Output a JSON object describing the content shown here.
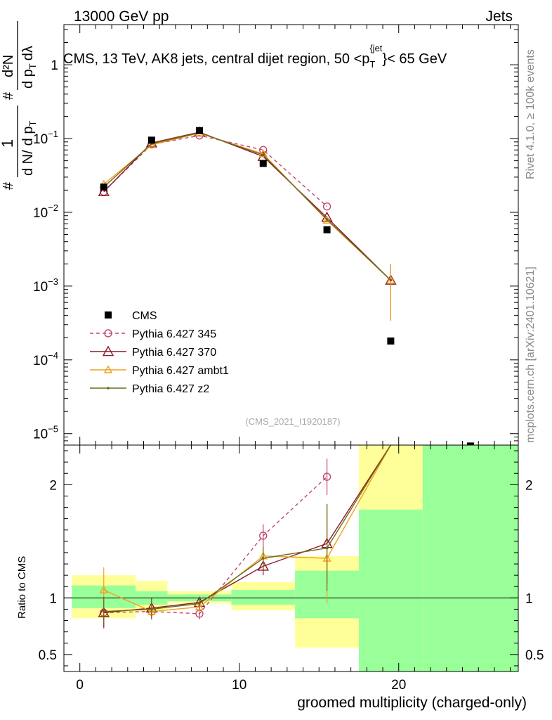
{
  "header": {
    "left": "13000 GeV pp",
    "right": "Jets"
  },
  "side": {
    "rivet": "Rivet 4.1.0, ≥ 100k events",
    "site": "mcplots.cern.ch [arXiv:2401.10621]"
  },
  "chart_data": {
    "type": "line",
    "title": "CMS, 13 TeV, AK8 jets, central dijet region, 50 < p_T^{jet} < 65 GeV",
    "title_parts": {
      "main": "CMS, 13 TeV, AK8 jets, central dijet region, 50 <p",
      "sub": "T",
      "sup": "{jet",
      "tail": "}< 65 GeV"
    },
    "analysis": "(CMS_2021_I1920187)",
    "xlabel": "groomed multiplicity (charged-only)",
    "ylabel_ratio": "Ratio to CMS",
    "ylabel_main": {
      "one": "1",
      "num_hash": "#",
      "den": "d N",
      "slash": "/",
      "dp": "d p",
      "T": "T",
      "hash": "#",
      "d2N": "d²N",
      "dpdl": "d p",
      "T2": "T",
      "dl": "dλ"
    },
    "xlim": [
      -1,
      27.5
    ],
    "ylim_main": [
      7e-06,
      3.5
    ],
    "ylim_ratio": [
      0.35,
      2.35
    ],
    "x_ticks": [
      0,
      10,
      20
    ],
    "x_tick_labels": [
      "0",
      "10",
      "20"
    ],
    "y_ticks_main": [
      1e-05,
      0.0001,
      0.001,
      0.01,
      0.1,
      1
    ],
    "y_tick_labels_main": [
      {
        "base": "10",
        "exp": "−5"
      },
      {
        "base": "10",
        "exp": "−4"
      },
      {
        "base": "10",
        "exp": "−3"
      },
      {
        "base": "10",
        "exp": "−2"
      },
      {
        "base": "10",
        "exp": "−1"
      },
      {
        "base": "1",
        "exp": ""
      }
    ],
    "y_ticks_ratio": [
      0.5,
      1,
      2
    ],
    "y_tick_labels_ratio": [
      "0.5",
      "1",
      "2"
    ],
    "bins": [
      [
        -0.5,
        3.5
      ],
      [
        3.5,
        5.5
      ],
      [
        5.5,
        9.5
      ],
      [
        9.5,
        13.5
      ],
      [
        13.5,
        17.5
      ],
      [
        17.5,
        21.5
      ],
      [
        21.5,
        27.5
      ]
    ],
    "data": {
      "name": "CMS",
      "x": [
        1.5,
        4.5,
        7.5,
        11.5,
        15.5,
        19.5,
        24.5
      ],
      "y": [
        0.022,
        0.095,
        0.128,
        0.046,
        0.0058,
        0.00018,
        6.8e-06
      ],
      "band_inner": [
        [
          0.91,
          1.11
        ],
        [
          0.94,
          1.06
        ],
        [
          0.97,
          1.03
        ],
        [
          0.94,
          1.07
        ],
        [
          0.82,
          1.24
        ],
        [
          0.35,
          1.78
        ],
        [
          0.35,
          2.35
        ]
      ],
      "band_outer": [
        [
          0.82,
          1.2
        ],
        [
          0.88,
          1.15
        ],
        [
          0.95,
          1.06
        ],
        [
          0.89,
          1.14
        ],
        [
          0.56,
          1.37
        ],
        [
          0.35,
          2.35
        ],
        [
          0.35,
          2.35
        ]
      ]
    },
    "series": [
      {
        "name": "Pythia 6.427 345",
        "color": "#c2476a",
        "dash": "5,4",
        "marker": "circle",
        "x": [
          1.5,
          4.5,
          7.5,
          11.5,
          15.5
        ],
        "y": [
          0.019,
          0.083,
          0.11,
          0.07,
          0.012
        ],
        "ratio": [
          0.87,
          0.88,
          0.86,
          1.55,
          2.07
        ],
        "ratio_err": [
          0.14,
          0.07,
          0.05,
          0.1,
          0.16
        ]
      },
      {
        "name": "Pythia 6.427 370",
        "color": "#8b1a2a",
        "dash": "",
        "marker": "triangle",
        "x": [
          1.5,
          4.5,
          7.5,
          11.5,
          15.5,
          19.5
        ],
        "y": [
          0.019,
          0.087,
          0.122,
          0.057,
          0.0085,
          0.0012
        ],
        "ratio": [
          0.87,
          0.91,
          0.96,
          1.28,
          1.48,
          6.5
        ],
        "ratio_err": [
          0.13,
          0.09,
          0.05,
          0.08,
          0.35,
          2.0
        ]
      },
      {
        "name": "Pythia 6.427 ambt1",
        "color": "#f0a020",
        "dash": "",
        "marker": "triangle-small",
        "x": [
          1.5,
          4.5,
          7.5,
          11.5,
          15.5,
          19.5
        ],
        "y": [
          0.024,
          0.082,
          0.118,
          0.062,
          0.0078,
          0.0012
        ],
        "ratio": [
          1.07,
          0.88,
          0.92,
          1.37,
          1.35,
          6.5
        ],
        "ratio_err": [
          0.2,
          0.07,
          0.05,
          0.08,
          0.4,
          2.0
        ]
      },
      {
        "name": "Pythia 6.427 z2",
        "color": "#6b6b1a",
        "dash": "",
        "marker": "dot",
        "x": [
          1.5,
          4.5,
          7.5,
          11.5,
          15.5,
          19.5
        ],
        "y": [
          0.022,
          0.085,
          0.12,
          0.06,
          0.008,
          0.0012
        ],
        "ratio": [
          0.88,
          0.9,
          0.95,
          1.35,
          1.44,
          6.5
        ],
        "ratio_err": [
          0.13,
          0.09,
          0.05,
          0.1,
          0.38,
          2.0
        ]
      }
    ]
  }
}
